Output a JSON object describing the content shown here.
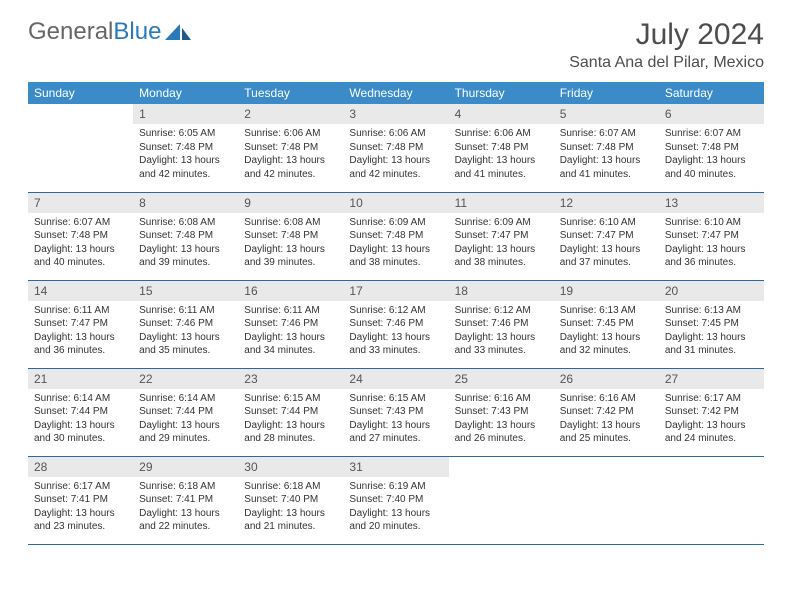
{
  "brand": {
    "part1": "General",
    "part2": "Blue"
  },
  "title": "July 2024",
  "location": "Santa Ana del Pilar, Mexico",
  "colors": {
    "header_bg": "#3b8bc9",
    "header_text": "#ffffff",
    "daynum_bg": "#e9e9e9",
    "daynum_text": "#555555",
    "body_text": "#333333",
    "divider": "#2a6aa0",
    "title_text": "#4d4d4d",
    "logo_gray": "#666666",
    "logo_blue": "#2a7ab8"
  },
  "day_headers": [
    "Sunday",
    "Monday",
    "Tuesday",
    "Wednesday",
    "Thursday",
    "Friday",
    "Saturday"
  ],
  "weeks": [
    [
      {
        "n": "",
        "sr": "",
        "ss": "",
        "dl": ""
      },
      {
        "n": "1",
        "sr": "Sunrise: 6:05 AM",
        "ss": "Sunset: 7:48 PM",
        "dl": "Daylight: 13 hours and 42 minutes."
      },
      {
        "n": "2",
        "sr": "Sunrise: 6:06 AM",
        "ss": "Sunset: 7:48 PM",
        "dl": "Daylight: 13 hours and 42 minutes."
      },
      {
        "n": "3",
        "sr": "Sunrise: 6:06 AM",
        "ss": "Sunset: 7:48 PM",
        "dl": "Daylight: 13 hours and 42 minutes."
      },
      {
        "n": "4",
        "sr": "Sunrise: 6:06 AM",
        "ss": "Sunset: 7:48 PM",
        "dl": "Daylight: 13 hours and 41 minutes."
      },
      {
        "n": "5",
        "sr": "Sunrise: 6:07 AM",
        "ss": "Sunset: 7:48 PM",
        "dl": "Daylight: 13 hours and 41 minutes."
      },
      {
        "n": "6",
        "sr": "Sunrise: 6:07 AM",
        "ss": "Sunset: 7:48 PM",
        "dl": "Daylight: 13 hours and 40 minutes."
      }
    ],
    [
      {
        "n": "7",
        "sr": "Sunrise: 6:07 AM",
        "ss": "Sunset: 7:48 PM",
        "dl": "Daylight: 13 hours and 40 minutes."
      },
      {
        "n": "8",
        "sr": "Sunrise: 6:08 AM",
        "ss": "Sunset: 7:48 PM",
        "dl": "Daylight: 13 hours and 39 minutes."
      },
      {
        "n": "9",
        "sr": "Sunrise: 6:08 AM",
        "ss": "Sunset: 7:48 PM",
        "dl": "Daylight: 13 hours and 39 minutes."
      },
      {
        "n": "10",
        "sr": "Sunrise: 6:09 AM",
        "ss": "Sunset: 7:48 PM",
        "dl": "Daylight: 13 hours and 38 minutes."
      },
      {
        "n": "11",
        "sr": "Sunrise: 6:09 AM",
        "ss": "Sunset: 7:47 PM",
        "dl": "Daylight: 13 hours and 38 minutes."
      },
      {
        "n": "12",
        "sr": "Sunrise: 6:10 AM",
        "ss": "Sunset: 7:47 PM",
        "dl": "Daylight: 13 hours and 37 minutes."
      },
      {
        "n": "13",
        "sr": "Sunrise: 6:10 AM",
        "ss": "Sunset: 7:47 PM",
        "dl": "Daylight: 13 hours and 36 minutes."
      }
    ],
    [
      {
        "n": "14",
        "sr": "Sunrise: 6:11 AM",
        "ss": "Sunset: 7:47 PM",
        "dl": "Daylight: 13 hours and 36 minutes."
      },
      {
        "n": "15",
        "sr": "Sunrise: 6:11 AM",
        "ss": "Sunset: 7:46 PM",
        "dl": "Daylight: 13 hours and 35 minutes."
      },
      {
        "n": "16",
        "sr": "Sunrise: 6:11 AM",
        "ss": "Sunset: 7:46 PM",
        "dl": "Daylight: 13 hours and 34 minutes."
      },
      {
        "n": "17",
        "sr": "Sunrise: 6:12 AM",
        "ss": "Sunset: 7:46 PM",
        "dl": "Daylight: 13 hours and 33 minutes."
      },
      {
        "n": "18",
        "sr": "Sunrise: 6:12 AM",
        "ss": "Sunset: 7:46 PM",
        "dl": "Daylight: 13 hours and 33 minutes."
      },
      {
        "n": "19",
        "sr": "Sunrise: 6:13 AM",
        "ss": "Sunset: 7:45 PM",
        "dl": "Daylight: 13 hours and 32 minutes."
      },
      {
        "n": "20",
        "sr": "Sunrise: 6:13 AM",
        "ss": "Sunset: 7:45 PM",
        "dl": "Daylight: 13 hours and 31 minutes."
      }
    ],
    [
      {
        "n": "21",
        "sr": "Sunrise: 6:14 AM",
        "ss": "Sunset: 7:44 PM",
        "dl": "Daylight: 13 hours and 30 minutes."
      },
      {
        "n": "22",
        "sr": "Sunrise: 6:14 AM",
        "ss": "Sunset: 7:44 PM",
        "dl": "Daylight: 13 hours and 29 minutes."
      },
      {
        "n": "23",
        "sr": "Sunrise: 6:15 AM",
        "ss": "Sunset: 7:44 PM",
        "dl": "Daylight: 13 hours and 28 minutes."
      },
      {
        "n": "24",
        "sr": "Sunrise: 6:15 AM",
        "ss": "Sunset: 7:43 PM",
        "dl": "Daylight: 13 hours and 27 minutes."
      },
      {
        "n": "25",
        "sr": "Sunrise: 6:16 AM",
        "ss": "Sunset: 7:43 PM",
        "dl": "Daylight: 13 hours and 26 minutes."
      },
      {
        "n": "26",
        "sr": "Sunrise: 6:16 AM",
        "ss": "Sunset: 7:42 PM",
        "dl": "Daylight: 13 hours and 25 minutes."
      },
      {
        "n": "27",
        "sr": "Sunrise: 6:17 AM",
        "ss": "Sunset: 7:42 PM",
        "dl": "Daylight: 13 hours and 24 minutes."
      }
    ],
    [
      {
        "n": "28",
        "sr": "Sunrise: 6:17 AM",
        "ss": "Sunset: 7:41 PM",
        "dl": "Daylight: 13 hours and 23 minutes."
      },
      {
        "n": "29",
        "sr": "Sunrise: 6:18 AM",
        "ss": "Sunset: 7:41 PM",
        "dl": "Daylight: 13 hours and 22 minutes."
      },
      {
        "n": "30",
        "sr": "Sunrise: 6:18 AM",
        "ss": "Sunset: 7:40 PM",
        "dl": "Daylight: 13 hours and 21 minutes."
      },
      {
        "n": "31",
        "sr": "Sunrise: 6:19 AM",
        "ss": "Sunset: 7:40 PM",
        "dl": "Daylight: 13 hours and 20 minutes."
      },
      {
        "n": "",
        "sr": "",
        "ss": "",
        "dl": ""
      },
      {
        "n": "",
        "sr": "",
        "ss": "",
        "dl": ""
      },
      {
        "n": "",
        "sr": "",
        "ss": "",
        "dl": ""
      }
    ]
  ]
}
